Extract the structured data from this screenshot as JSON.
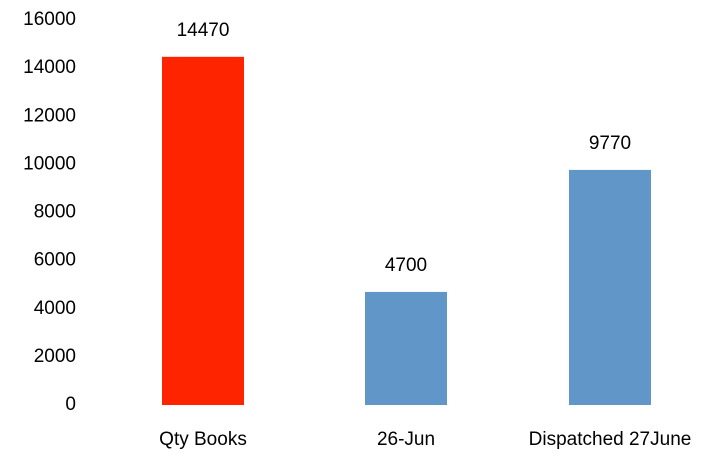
{
  "chart_data": {
    "type": "bar",
    "categories": [
      "Qty Books",
      "26-Jun",
      "Dispatched 27June"
    ],
    "values": [
      14470,
      4700,
      9770
    ],
    "colors": [
      "#ff2400",
      "#6096c8",
      "#6096c8"
    ],
    "ylim": [
      0,
      16000
    ],
    "yticks": [
      0,
      2000,
      4000,
      6000,
      8000,
      10000,
      12000,
      14000,
      16000
    ],
    "grid": false
  }
}
